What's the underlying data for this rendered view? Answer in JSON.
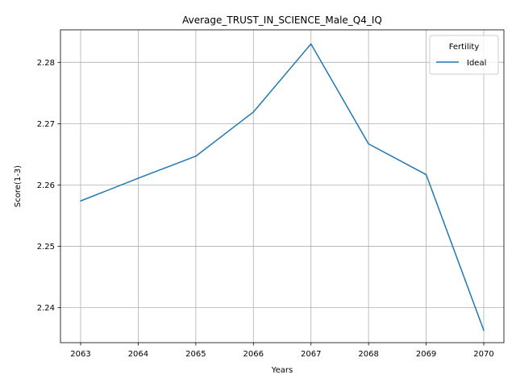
{
  "chart_data": {
    "type": "line",
    "title": "Average_TRUST_IN_SCIENCE_Male_Q4_IQ",
    "xlabel": "Years",
    "ylabel": "Score(1-3)",
    "x": [
      2063,
      2064,
      2065,
      2066,
      2067,
      2068,
      2069,
      2070
    ],
    "series": [
      {
        "name": "Ideal",
        "color": "#1f77b4",
        "values": [
          2.2574,
          2.2611,
          2.2647,
          2.2719,
          2.283,
          2.2667,
          2.2617,
          2.2363
        ]
      }
    ],
    "xlim": [
      2062.65,
      2070.35
    ],
    "ylim": [
      2.2343,
      2.2853
    ],
    "xticks": [
      "2063",
      "2064",
      "2065",
      "2066",
      "2067",
      "2068",
      "2069",
      "2070"
    ],
    "yticks": [
      "2.24",
      "2.25",
      "2.26",
      "2.27",
      "2.28"
    ],
    "ytick_values": [
      2.24,
      2.25,
      2.26,
      2.27,
      2.28
    ],
    "grid": true,
    "legend": {
      "title": "Fertility",
      "placement": "top-right"
    }
  }
}
